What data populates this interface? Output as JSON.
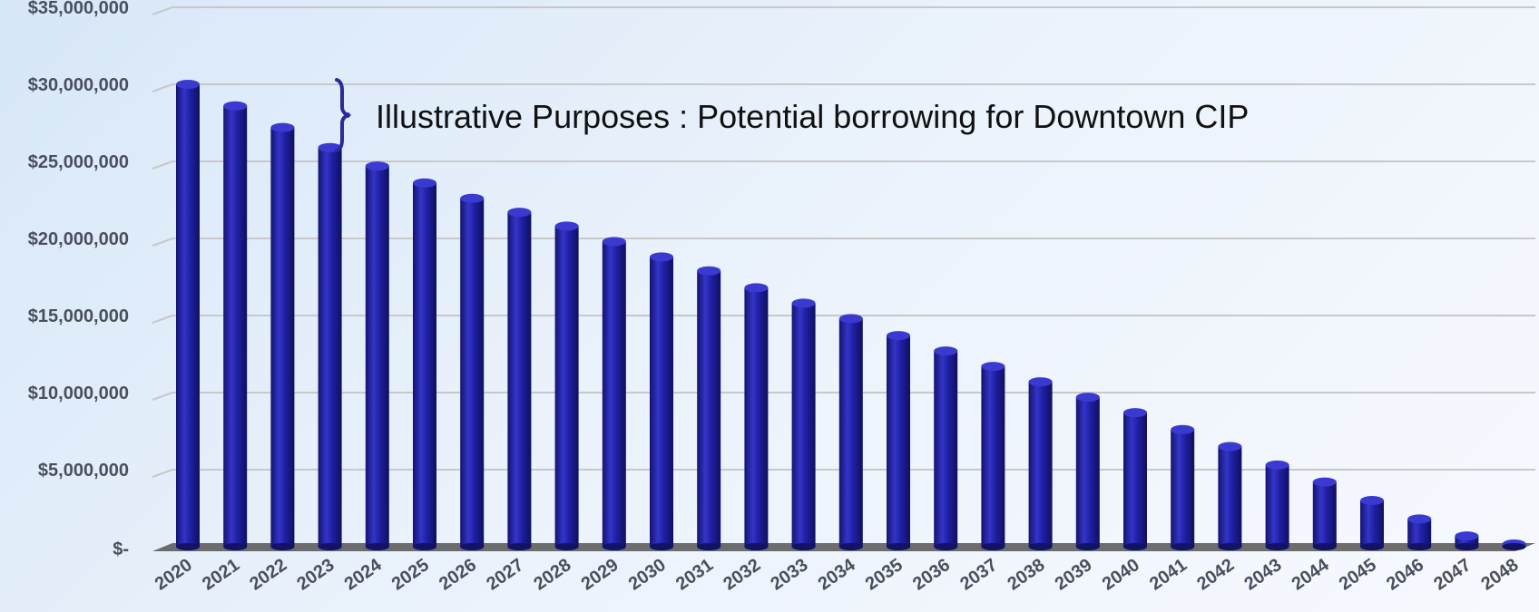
{
  "chart_data": {
    "type": "bar",
    "title": "",
    "xlabel": "",
    "ylabel": "",
    "annotation": "Illustrative Purposes : Potential borrowing for Downtown CIP",
    "categories": [
      "2020",
      "2021",
      "2022",
      "2023",
      "2024",
      "2025",
      "2026",
      "2027",
      "2028",
      "2029",
      "2030",
      "2031",
      "2032",
      "2033",
      "2034",
      "2035",
      "2036",
      "2037",
      "2038",
      "2039",
      "2040",
      "2041",
      "2042",
      "2043",
      "2044",
      "2045",
      "2046",
      "2047",
      "2048"
    ],
    "values": [
      30000000,
      28600000,
      27200000,
      25900000,
      24700000,
      23600000,
      22600000,
      21700000,
      20800000,
      19800000,
      18800000,
      17900000,
      16800000,
      15800000,
      14800000,
      13700000,
      12700000,
      11700000,
      10700000,
      9700000,
      8700000,
      7600000,
      6500000,
      5300000,
      4200000,
      3000000,
      1800000,
      700000,
      0
    ],
    "ylim": [
      0,
      35000000
    ],
    "yticks": [
      0,
      5000000,
      10000000,
      15000000,
      20000000,
      25000000,
      30000000,
      35000000
    ],
    "ytick_labels": [
      "$-",
      "$5,000,000",
      "$10,000,000",
      "$15,000,000",
      "$20,000,000",
      "$25,000,000",
      "$30,000,000",
      "$35,000,000"
    ],
    "grid": true,
    "legend": "none",
    "colors": {
      "bar": "#1f1f9e",
      "bar_highlight": "#3a3ad0",
      "bar_shadow": "#121266",
      "gridline": "#c8c8c8",
      "floor": "#555555",
      "tick_text": "#4a4f5c"
    }
  }
}
